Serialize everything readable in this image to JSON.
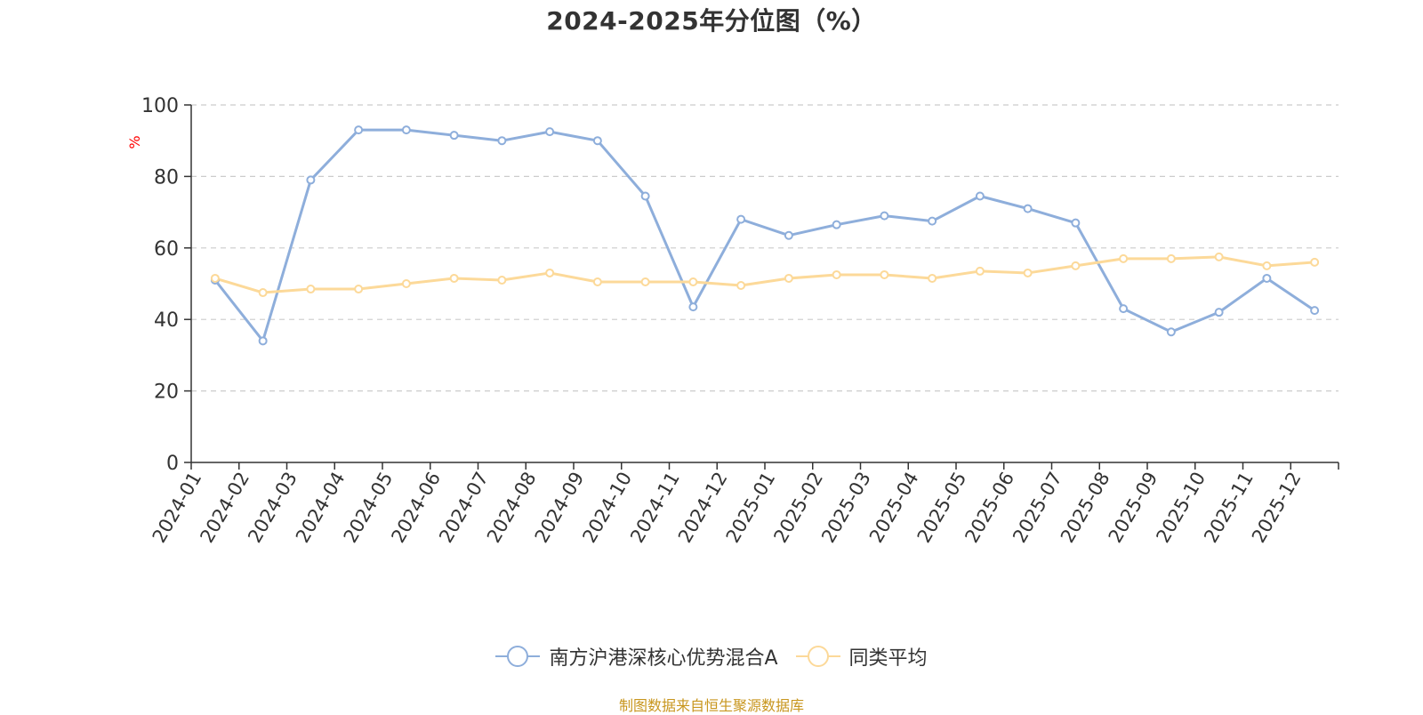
{
  "chart_data": {
    "type": "line",
    "title": "2024-2025年分位图（%）",
    "ylabel": "%",
    "xlabel": "",
    "ylim": [
      0,
      100
    ],
    "yticks": [
      0,
      20,
      40,
      60,
      80,
      100
    ],
    "grid": "horizontal-dashed",
    "legend_position": "bottom-center",
    "categories": [
      "2024-01",
      "2024-02",
      "2024-03",
      "2024-04",
      "2024-05",
      "2024-06",
      "2024-07",
      "2024-08",
      "2024-09",
      "2024-10",
      "2024-11",
      "2024-12",
      "2025-01",
      "2025-02",
      "2025-03",
      "2025-04",
      "2025-05",
      "2025-06",
      "2025-07",
      "2025-08",
      "2025-09",
      "2025-10",
      "2025-11",
      "2025-12"
    ],
    "series": [
      {
        "name": "南方沪港深核心优势混合A",
        "color": "#8eaedb",
        "values": [
          51,
          34,
          79,
          93,
          93,
          91.5,
          90,
          92.5,
          90,
          74.5,
          43.5,
          68,
          63.5,
          66.5,
          69,
          67.5,
          74.5,
          71,
          67,
          43,
          36.5,
          42,
          51.5,
          42.5
        ]
      },
      {
        "name": "同类平均",
        "color": "#fcd999",
        "values": [
          51.5,
          47.5,
          48.5,
          48.5,
          50,
          51.5,
          51,
          53,
          50.5,
          50.5,
          50.5,
          49.5,
          51.5,
          52.5,
          52.5,
          51.5,
          53.5,
          53,
          55,
          57,
          57,
          57.5,
          55,
          56
        ]
      }
    ]
  },
  "source_text": "制图数据来自恒生聚源数据库"
}
